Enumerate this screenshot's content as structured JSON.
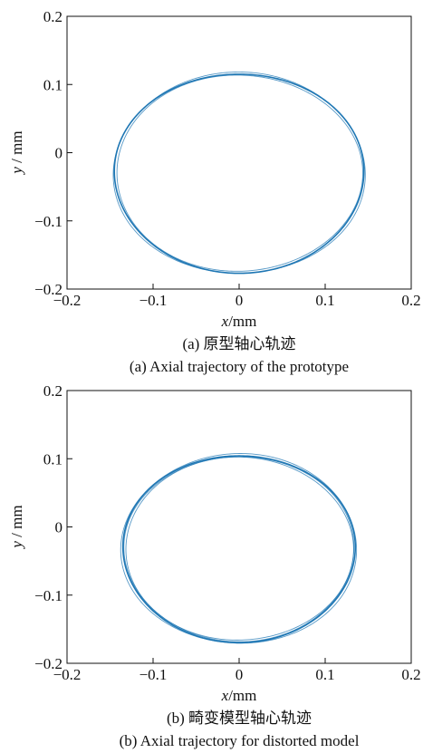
{
  "chart_data": [
    {
      "type": "line",
      "caption_cn": "(a) 原型轴心轨迹",
      "caption_en": "(a) Axial trajectory of the prototype",
      "xlabel_var": "x",
      "xlabel_unit": "/mm",
      "ylabel_var": "y",
      "ylabel_unit": " / mm",
      "xlim": [
        -0.2,
        0.2
      ],
      "ylim": [
        -0.2,
        0.2
      ],
      "xticks": [
        "−0.2",
        "−0.1",
        "0",
        "0.1",
        "0.2"
      ],
      "yticks": [
        "−0.2",
        "−0.1",
        "0",
        "0.1",
        "0.2"
      ],
      "grid": false,
      "series_color": "#1f77b4",
      "trajectory": {
        "center": [
          0.0,
          -0.03
        ],
        "radius_x": 0.145,
        "radius_y": 0.146,
        "turns": [
          [
            1.0,
            0.0
          ],
          [
            0.985,
            0.3
          ],
          [
            1.01,
            0.6
          ]
        ]
      }
    },
    {
      "type": "line",
      "caption_cn": "(b) 畸变模型轴心轨迹",
      "caption_en": "(b) Axial trajectory for distorted model",
      "xlabel_var": "x",
      "xlabel_unit": "/mm",
      "ylabel_var": "y",
      "ylabel_unit": " / mm",
      "xlim": [
        -0.2,
        0.2
      ],
      "ylim": [
        -0.2,
        0.2
      ],
      "xticks": [
        "−0.2",
        "−0.1",
        "0",
        "0.1",
        "0.2"
      ],
      "yticks": [
        "−0.2",
        "−0.1",
        "0",
        "0.1",
        "0.2"
      ],
      "grid": false,
      "series_color": "#1f77b4",
      "trajectory": {
        "center": [
          0.0,
          -0.032
        ],
        "radius_x": 0.135,
        "radius_y": 0.137,
        "turns": [
          [
            1.0,
            0.0
          ],
          [
            0.98,
            0.4
          ],
          [
            1.015,
            0.8
          ],
          [
            0.99,
            1.2
          ]
        ]
      }
    }
  ]
}
